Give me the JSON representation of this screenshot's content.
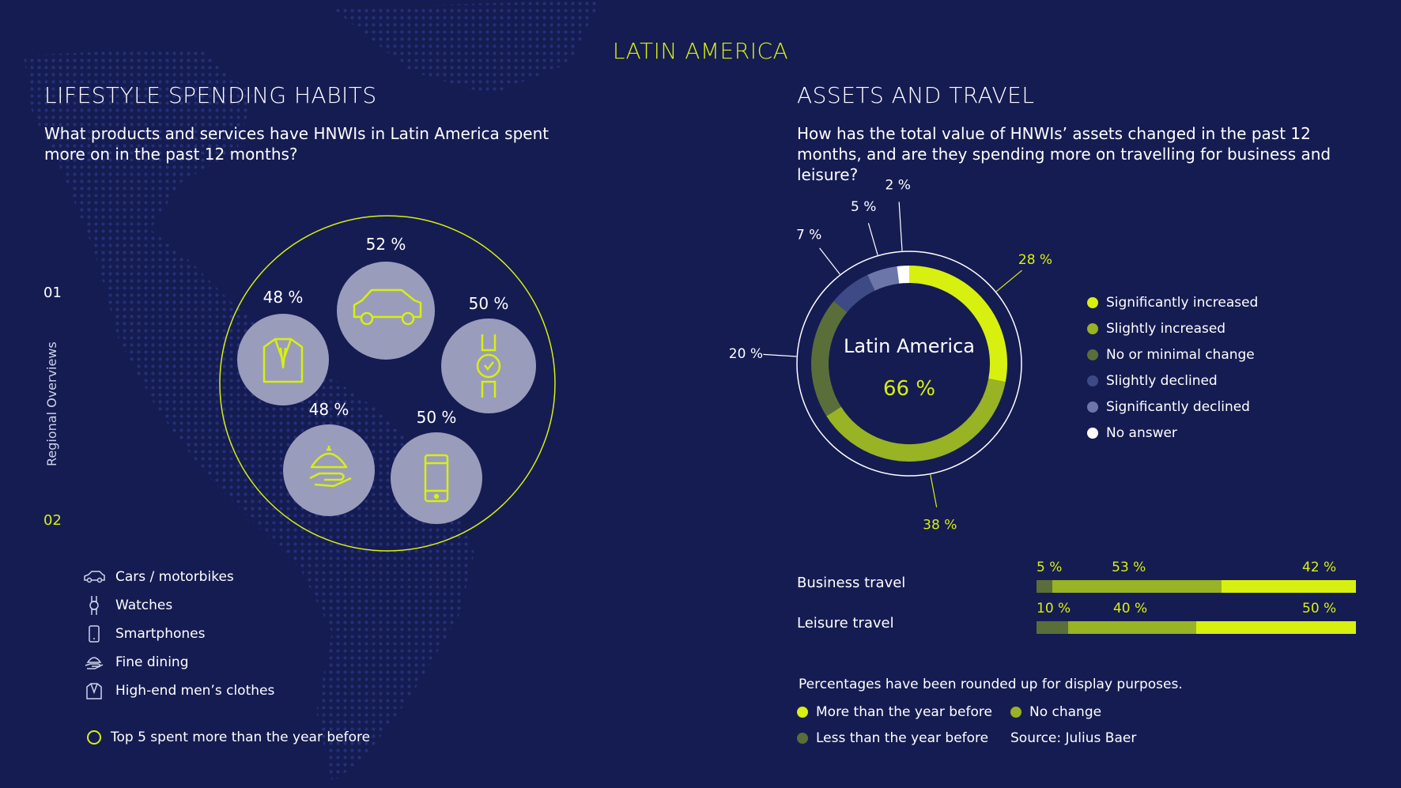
{
  "region_title": "LATIN AMERICA",
  "side_nav": {
    "label": "Regional Overviews",
    "num_top": "01",
    "num_bottom": "02"
  },
  "lifestyle": {
    "title": "LIFESTYLE SPENDING HABITS",
    "question": "What products and services have HNWIs in Latin America spent more on in the past 12 months?",
    "legend": [
      {
        "label": "Cars / motorbikes",
        "icon": "car-icon"
      },
      {
        "label": "Watches",
        "icon": "watch-icon"
      },
      {
        "label": "Smartphones",
        "icon": "smartphone-icon"
      },
      {
        "label": "Fine dining",
        "icon": "cloche-icon"
      },
      {
        "label": "High-end men’s clothes",
        "icon": "suit-icon"
      }
    ],
    "footer_note": "Top 5 spent more than the year before"
  },
  "assets": {
    "title": "ASSETS AND TRAVEL",
    "question": "How has the total value of HNWIs’ assets changed in the past 12 months, and are they spending more on travelling for business and leisure?",
    "donut_center_label": "Latin America",
    "donut_center_value": "66 %",
    "rounding_note": "Percentages have been rounded up for display purposes.",
    "bar_legend": [
      {
        "label": "More than the year before",
        "color": "#d7f00f"
      },
      {
        "label": "No change",
        "color": "#98b323"
      },
      {
        "label": "Less than the year before",
        "color": "#5a6e3a"
      }
    ],
    "source": "Source: Julius Baer"
  },
  "colors": {
    "background": "#151c52",
    "lime": "#d7f00f",
    "olive": "#98b323",
    "dark_olive": "#5a6e3a",
    "slate": "#3d4a86",
    "slate_light": "#6d76a8",
    "circle_fill": "#9a9cbc"
  },
  "chart_data": [
    {
      "type": "bubble",
      "categories": [
        "Cars / motorbikes",
        "Watches",
        "Smartphones",
        "Fine dining",
        "High-end men’s clothes"
      ],
      "values": [
        52,
        50,
        50,
        48,
        48
      ],
      "labels": [
        "52 %",
        "50 %",
        "50 %",
        "48 %",
        "48 %"
      ],
      "icons": [
        "car-icon",
        "watch-icon",
        "smartphone-icon",
        "cloche-icon",
        "suit-icon"
      ]
    },
    {
      "type": "pie",
      "categories": [
        "Significantly increased",
        "Slightly increased",
        "No or minimal change",
        "Slightly declined",
        "Significantly declined",
        "No answer"
      ],
      "values": [
        28,
        38,
        20,
        7,
        5,
        2
      ],
      "labels": [
        "28 %",
        "38 %",
        "20 %",
        "7 %",
        "5 %",
        "2 %"
      ],
      "colors": [
        "#d7f00f",
        "#98b323",
        "#5a6e3a",
        "#3d4a86",
        "#6d76a8",
        "#ffffff"
      ],
      "legend_position": "right"
    },
    {
      "type": "bar",
      "orientation": "horizontal-stacked",
      "categories": [
        "Business travel",
        "Leisure travel"
      ],
      "series": [
        {
          "name": "Less than the year before",
          "values": [
            5,
            10
          ],
          "labels": [
            "5 %",
            "10 %"
          ],
          "color": "#5a6e3a"
        },
        {
          "name": "No change",
          "values": [
            53,
            40
          ],
          "labels": [
            "53 %",
            "40 %"
          ],
          "color": "#98b323"
        },
        {
          "name": "More than the year before",
          "values": [
            42,
            50
          ],
          "labels": [
            "42 %",
            "50 %"
          ],
          "color": "#d7f00f"
        }
      ]
    }
  ]
}
